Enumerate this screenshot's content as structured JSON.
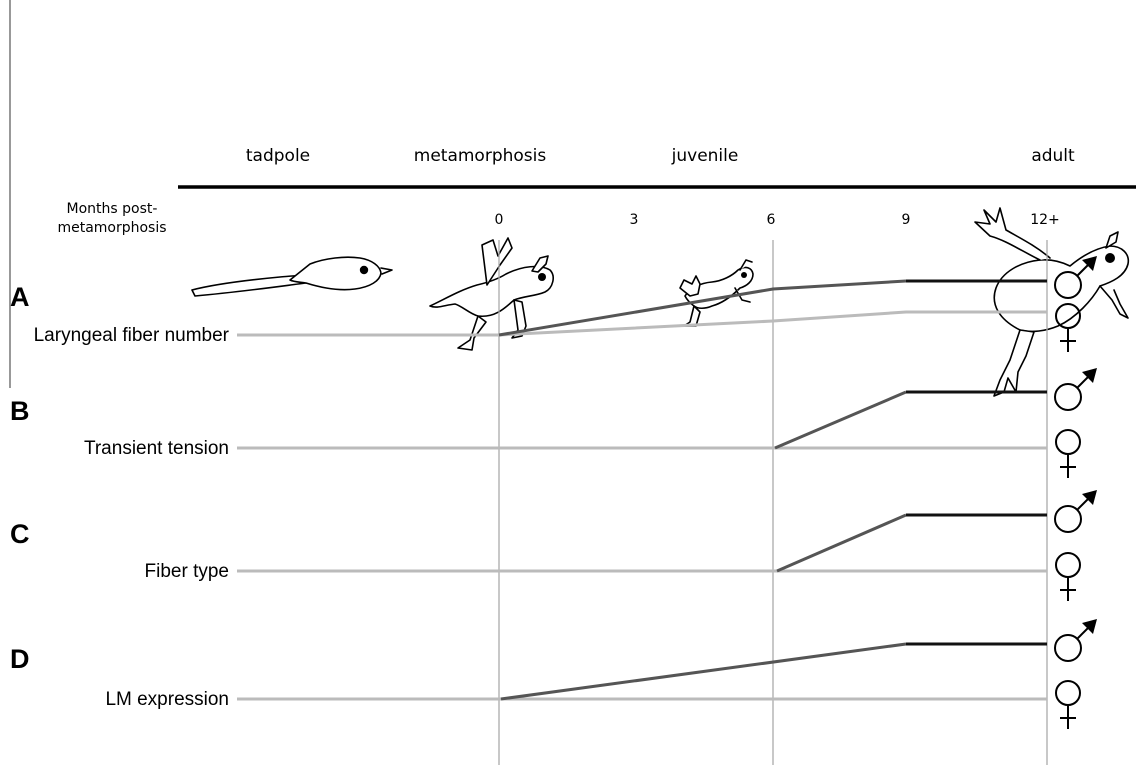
{
  "stages": [
    "tadpole",
    "metamorphosis",
    "juvenile",
    "adult"
  ],
  "axis": {
    "title_line1": "Months post-",
    "title_line2": "metamorphosis",
    "ticks": [
      "0",
      "3",
      "6",
      "9",
      "12+"
    ]
  },
  "rows": [
    {
      "letter": "A",
      "label": "Laryngeal fiber number"
    },
    {
      "letter": "B",
      "label": "Transient tension"
    },
    {
      "letter": "C",
      "label": "Fiber type"
    },
    {
      "letter": "D",
      "label": "LM expression"
    }
  ],
  "colors": {
    "male_line": "#555555",
    "male_plateau": "#111111",
    "female_line": "#bbbbbb",
    "gridline": "#aaaaaa",
    "axis_bar": "#000000"
  },
  "icons": [
    "tadpole-icon",
    "metamorphosis-frog-icon",
    "juvenile-frog-icon",
    "adult-frog-icon",
    "male-symbol-icon",
    "female-symbol-icon"
  ]
}
